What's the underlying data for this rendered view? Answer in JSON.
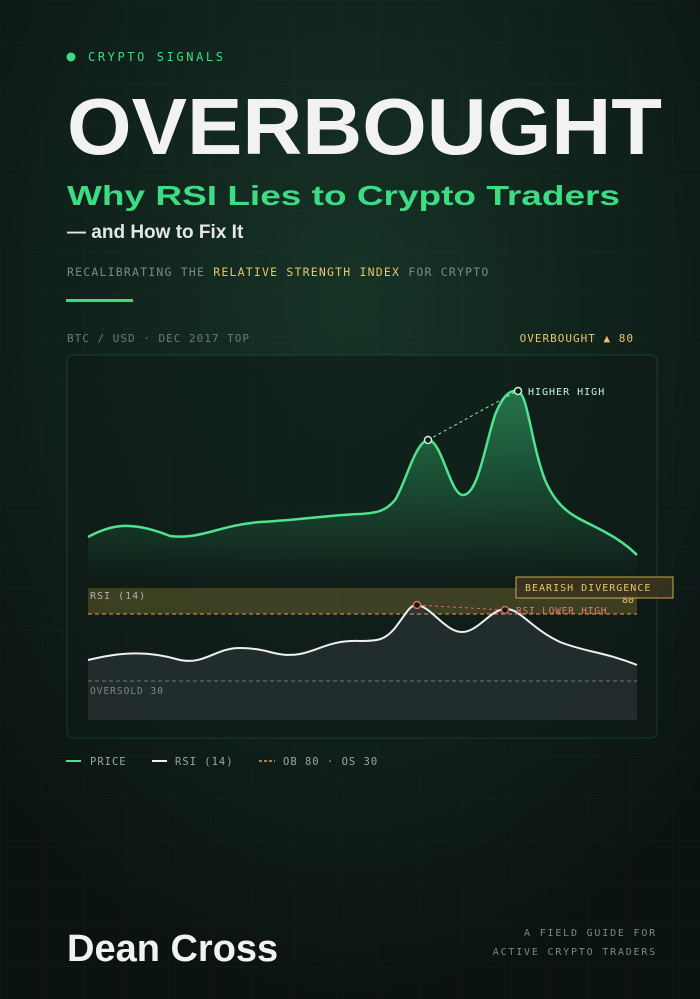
{
  "cover": {
    "series_label": "CRYPTO SIGNALS",
    "title": "OVERBOUGHT",
    "subtitle": "Why RSI Lies to Crypto Traders",
    "subtitle_2": "— and How to Fix It",
    "tagline": {
      "before": "RECALIBRATING THE",
      "highlight": "RELATIVE STRENGTH INDEX",
      "after": "FOR CRYPTO"
    },
    "chart": {
      "caption_left": "BTC / USD · DEC 2017 TOP",
      "caption_right": "OVERBOUGHT ▲ 80",
      "higher_high": "HIGHER HIGH",
      "rsi_label": "RSI (14)",
      "ob_level": "80",
      "os_label": "OVERSOLD 30",
      "divergence": "BEARISH DIVERGENCE",
      "rsi_lower_high": "RSI LOWER HIGH"
    },
    "legend": [
      "PRICE",
      "RSI (14)",
      "OB 80 · OS 30"
    ],
    "author": "Dean Cross",
    "footer": [
      "A FIELD GUIDE FOR",
      "ACTIVE CRYPTO TRADERS"
    ]
  }
}
